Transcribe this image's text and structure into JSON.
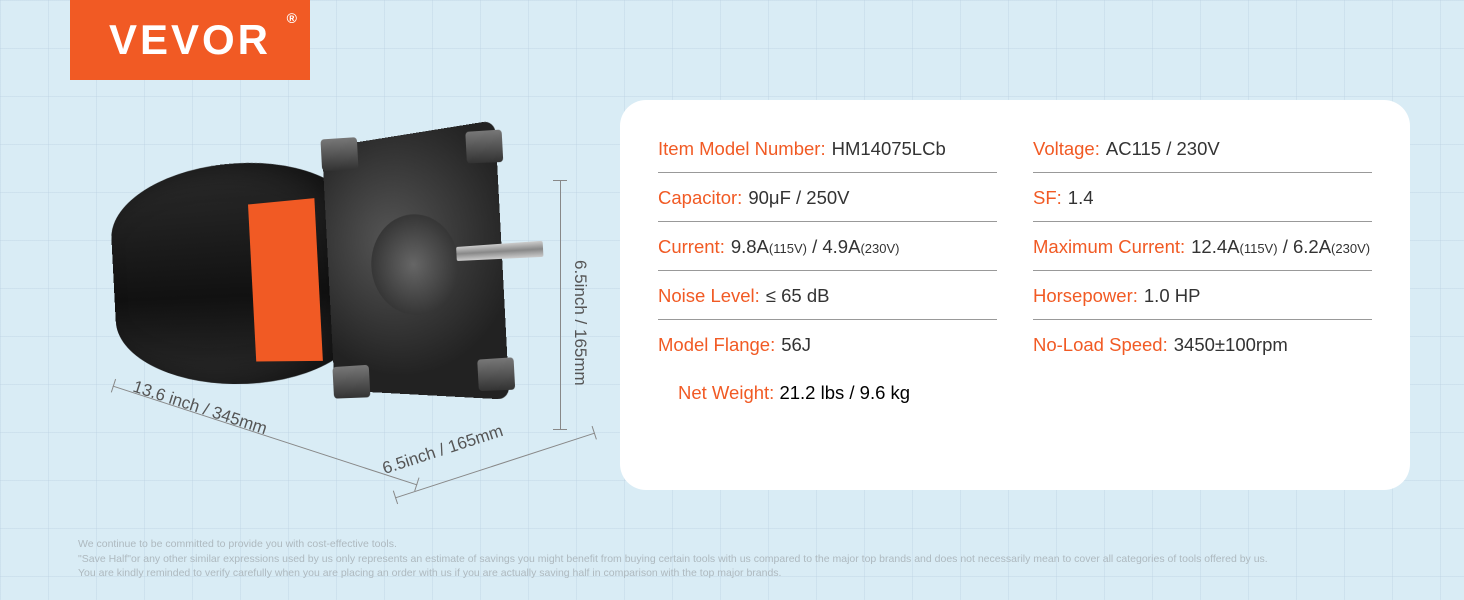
{
  "brand": {
    "name": "VEVOR"
  },
  "dimensions": {
    "length": "13.6 inch / 345mm",
    "width": "6.5inch / 165mm",
    "height": "6.5inch / 165mm"
  },
  "specs": {
    "item_model_number": {
      "label": "Item Model Number:",
      "value": "HM14075LCb"
    },
    "voltage": {
      "label": "Voltage:",
      "value": "AC115 / 230V"
    },
    "capacitor": {
      "label": "Capacitor:",
      "value": "90μF / 250V"
    },
    "sf": {
      "label": "SF:",
      "value": "1.4"
    },
    "current": {
      "label": "Current:",
      "value_a": "9.8A",
      "sub_a": "(115V)",
      "sep": " / ",
      "value_b": "4.9A",
      "sub_b": "(230V)"
    },
    "max_current": {
      "label": "Maximum Current:",
      "value_a": "12.4A",
      "sub_a": "(115V)",
      "sep": " / ",
      "value_b": "6.2A",
      "sub_b": "(230V)"
    },
    "noise_level": {
      "label": "Noise Level:",
      "value": "≤ 65 dB"
    },
    "horsepower": {
      "label": "Horsepower:",
      "value": "1.0 HP"
    },
    "model_flange": {
      "label": "Model Flange:",
      "value": "56J"
    },
    "no_load_speed": {
      "label": "No-Load Speed:",
      "value": "3450±100rpm"
    },
    "net_weight": {
      "label": "Net Weight:",
      "value": "21.2 lbs / 9.6 kg"
    }
  },
  "disclaimer": {
    "line1": "We continue to be committed to provide you with cost-effective tools.",
    "line2": "\"Save Half\"or any other similar expressions used by us only represents an estimate of savings you might benefit from buying certain tools with us compared to the major top brands and does not necessarily mean to cover all categories of tools offered by us.",
    "line3": "You are kindly reminded to verify carefully when you are placing an order with us if you are actually saving half in comparison with the top major brands."
  },
  "colors": {
    "brand_orange": "#f15a24",
    "panel_bg": "#ffffff",
    "page_bg": "#d9ecf5",
    "text_dark": "#333333",
    "divider": "#999999",
    "disclaimer": "#aeb9bf"
  }
}
